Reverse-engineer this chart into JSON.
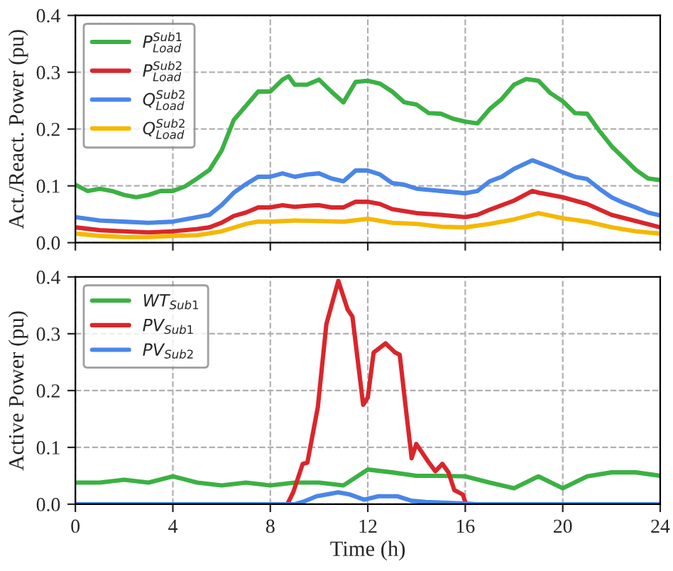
{
  "chart_data": [
    {
      "type": "line",
      "ylabel": "Act./React. Power (pu)",
      "xlim": [
        0,
        24
      ],
      "xticks": [
        0,
        4,
        8,
        12,
        16,
        20,
        24
      ],
      "ylim": [
        0,
        0.4
      ],
      "yticks": [
        {
          "value": 0,
          "label": "0.0"
        },
        0.1,
        0.2,
        0.3,
        0.4
      ],
      "grid": true,
      "legend": "top left",
      "tick_labels": "y",
      "series": [
        {
          "name": "P$^{Sub1}$$_{Load}$",
          "color": "#3bb143",
          "x": [
            0,
            0.5,
            1,
            1.5,
            2,
            2.5,
            3,
            3.5,
            4,
            4.5,
            5,
            5.5,
            6,
            6.5,
            7,
            7.5,
            8,
            8.5,
            8.75,
            9,
            9.5,
            10,
            10.5,
            11,
            11.5,
            12,
            12.5,
            13,
            13.5,
            14,
            14.5,
            15,
            15.5,
            16,
            16.5,
            17,
            17.5,
            18,
            18.5,
            19,
            19.5,
            20,
            20.5,
            21,
            21.5,
            22,
            22.5,
            23,
            23.5,
            24
          ],
          "values": [
            0.102,
            0.091,
            0.095,
            0.091,
            0.084,
            0.08,
            0.084,
            0.091,
            0.091,
            0.099,
            0.113,
            0.128,
            0.162,
            0.216,
            0.241,
            0.266,
            0.266,
            0.287,
            0.293,
            0.278,
            0.278,
            0.287,
            0.266,
            0.247,
            0.283,
            0.285,
            0.28,
            0.266,
            0.247,
            0.243,
            0.228,
            0.227,
            0.218,
            0.213,
            0.21,
            0.235,
            0.253,
            0.278,
            0.288,
            0.285,
            0.263,
            0.249,
            0.228,
            0.227,
            0.197,
            0.17,
            0.149,
            0.128,
            0.113,
            0.11
          ]
        },
        {
          "name": "P$^{Sub2}$$_{Load}$",
          "color": "#d9262b",
          "x": [
            0,
            1,
            2,
            3,
            4,
            5,
            5.5,
            6,
            6.5,
            7,
            7.5,
            8,
            8.5,
            9,
            9.5,
            10,
            10.5,
            11,
            11.5,
            12,
            12.5,
            13,
            14,
            15,
            16,
            16.5,
            17,
            18,
            18.75,
            19,
            20,
            21,
            22,
            23,
            24
          ],
          "values": [
            0.027,
            0.022,
            0.02,
            0.018,
            0.02,
            0.024,
            0.027,
            0.035,
            0.047,
            0.053,
            0.062,
            0.062,
            0.066,
            0.063,
            0.065,
            0.066,
            0.062,
            0.062,
            0.072,
            0.072,
            0.068,
            0.059,
            0.052,
            0.049,
            0.045,
            0.049,
            0.058,
            0.074,
            0.091,
            0.088,
            0.08,
            0.068,
            0.049,
            0.038,
            0.027
          ]
        },
        {
          "name": "Q$^{Sub2}$$_{Load}$",
          "color": "#4a86e8",
          "x": [
            0,
            1,
            2,
            3,
            4,
            5,
            5.5,
            6,
            6.5,
            7,
            7.5,
            8,
            8.5,
            9,
            9.5,
            10,
            10.5,
            11,
            11.5,
            12,
            12.5,
            13,
            13.5,
            14,
            15,
            16,
            16.5,
            17,
            17.5,
            18,
            18.75,
            19,
            19.5,
            20,
            20.5,
            21,
            21.5,
            22,
            22.5,
            23,
            23.5,
            24
          ],
          "values": [
            0.045,
            0.039,
            0.037,
            0.035,
            0.037,
            0.045,
            0.049,
            0.066,
            0.088,
            0.103,
            0.116,
            0.116,
            0.122,
            0.116,
            0.12,
            0.122,
            0.113,
            0.108,
            0.127,
            0.127,
            0.12,
            0.105,
            0.102,
            0.095,
            0.091,
            0.087,
            0.091,
            0.108,
            0.116,
            0.13,
            0.145,
            0.141,
            0.133,
            0.124,
            0.116,
            0.112,
            0.095,
            0.08,
            0.07,
            0.062,
            0.053,
            0.048
          ]
        },
        {
          "name": "Q$^{Sub2}$$_{Load}$",
          "color": "#f5b800",
          "x": [
            0,
            1,
            2,
            3,
            4,
            5,
            6,
            7,
            7.5,
            8,
            9,
            10,
            11,
            12,
            13,
            14,
            15,
            16,
            17,
            18,
            19,
            20,
            21,
            22,
            23,
            24
          ],
          "values": [
            0.016,
            0.012,
            0.01,
            0.01,
            0.012,
            0.013,
            0.02,
            0.033,
            0.037,
            0.037,
            0.039,
            0.038,
            0.037,
            0.042,
            0.035,
            0.033,
            0.028,
            0.027,
            0.033,
            0.041,
            0.052,
            0.043,
            0.037,
            0.027,
            0.02,
            0.016
          ]
        }
      ]
    },
    {
      "type": "line",
      "xlabel": "Time (h)",
      "ylabel": "Active Power (pu)",
      "xlim": [
        0,
        24
      ],
      "xticks": [
        0,
        4,
        8,
        12,
        16,
        20,
        24
      ],
      "ylim": [
        0,
        0.4
      ],
      "yticks": [
        {
          "value": 0,
          "label": "0.0"
        },
        0.1,
        0.2,
        0.3,
        0.4
      ],
      "grid": true,
      "legend": "top left",
      "series": [
        {
          "name": "WT$_{Sub1}$",
          "color": "#3bb143",
          "x": [
            0,
            1,
            2,
            3,
            4,
            5,
            6,
            7,
            8,
            9,
            10,
            11,
            12,
            13,
            14,
            15,
            16,
            17,
            18,
            19,
            20,
            21,
            22,
            23,
            24
          ],
          "values": [
            0.038,
            0.038,
            0.043,
            0.038,
            0.049,
            0.038,
            0.033,
            0.038,
            0.033,
            0.038,
            0.038,
            0.033,
            0.061,
            0.056,
            0.05,
            0.05,
            0.049,
            0.038,
            0.028,
            0.049,
            0.028,
            0.049,
            0.056,
            0.056,
            0.05
          ]
        },
        {
          "name": "PV$_{Sub1}$",
          "color": "#d9262b",
          "x": [
            8.7,
            8.94,
            9.33,
            9.52,
            9.95,
            10.3,
            10.79,
            11.17,
            11.37,
            11.81,
            12.0,
            12.24,
            12.73,
            13.12,
            13.31,
            13.6,
            13.8,
            13.99,
            14.48,
            14.77,
            15.06,
            15.31,
            15.55,
            15.9,
            16.03
          ],
          "values": [
            0,
            0.021,
            0.071,
            0.073,
            0.171,
            0.317,
            0.393,
            0.343,
            0.33,
            0.175,
            0.188,
            0.267,
            0.283,
            0.267,
            0.263,
            0.154,
            0.081,
            0.106,
            0.075,
            0.058,
            0.071,
            0.056,
            0.025,
            0.017,
            0
          ]
        },
        {
          "name": "PV$_{Sub2}$",
          "color": "#4a86e8",
          "x": [
            0,
            9.0,
            9.33,
            9.9,
            10.79,
            11.27,
            11.85,
            12.44,
            13.21,
            13.8,
            14.38,
            16.03,
            16.5,
            24
          ],
          "values": [
            0,
            0,
            0.004,
            0.014,
            0.021,
            0.017,
            0.008,
            0.014,
            0.014,
            0.006,
            0.004,
            0.001,
            0,
            0
          ]
        }
      ]
    }
  ]
}
